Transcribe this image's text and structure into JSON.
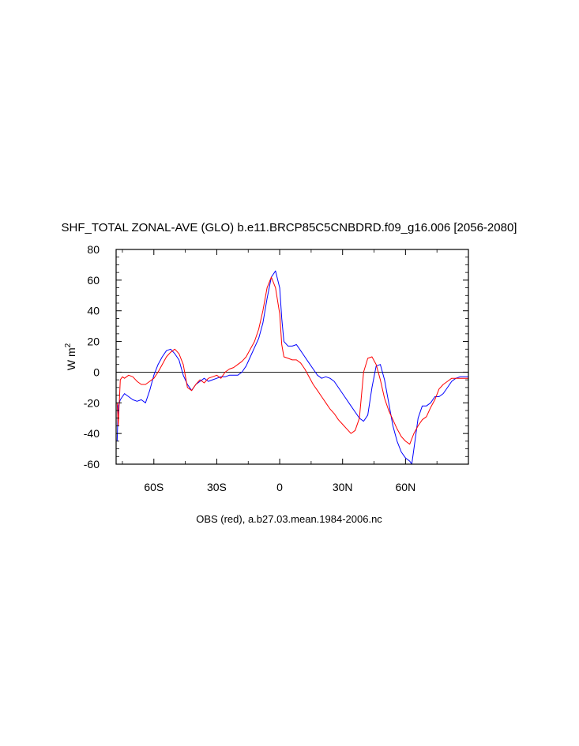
{
  "chart_data": {
    "type": "line",
    "title": "SHF_TOTAL ZONAL-AVE (GLO) b.e11.BRCP85C5CNBDRD.f09_g16.006 [2056-2080]",
    "ylabel": "W m",
    "ylabel_superscript": "2",
    "footer": "OBS (red), a.b27.03.mean.1984-2006.nc",
    "xlim": [
      -78,
      90
    ],
    "ylim": [
      -60,
      80
    ],
    "y_ticks": [
      80,
      60,
      40,
      20,
      0,
      -20,
      -40,
      -60
    ],
    "x_ticks": [
      {
        "value": -60,
        "label": "60S"
      },
      {
        "value": -30,
        "label": "30S"
      },
      {
        "value": 0,
        "label": "0"
      },
      {
        "value": 30,
        "label": "30N"
      },
      {
        "value": 60,
        "label": "60N"
      }
    ],
    "zero_line": true,
    "series": [
      {
        "color": "#0000ff",
        "x": [
          -77.5,
          -77,
          -76,
          -74,
          -72,
          -70,
          -68,
          -66,
          -64,
          -62,
          -60,
          -58,
          -56,
          -54,
          -52,
          -50,
          -48,
          -46,
          -44,
          -42,
          -40,
          -38,
          -36,
          -34,
          -32,
          -30,
          -28,
          -26,
          -24,
          -22,
          -20,
          -18,
          -16,
          -14,
          -12,
          -10,
          -8,
          -6,
          -4,
          -2,
          0,
          1,
          2,
          4,
          6,
          8,
          10,
          12,
          14,
          16,
          18,
          20,
          22,
          24,
          26,
          28,
          30,
          32,
          34,
          36,
          38,
          40,
          42,
          44,
          46,
          48,
          50,
          52,
          54,
          56,
          58,
          60,
          62,
          63,
          64,
          66,
          68,
          70,
          72,
          74,
          76,
          78,
          80,
          82,
          84,
          86,
          88,
          90
        ],
        "y": [
          -45,
          -22,
          -18,
          -14,
          -16,
          -18,
          -19,
          -18,
          -20,
          -12,
          -2,
          5,
          10,
          14,
          15,
          12,
          8,
          -2,
          -8,
          -12,
          -8,
          -6,
          -4,
          -6,
          -5,
          -4,
          -3,
          -3,
          -2,
          -2,
          -2,
          0,
          4,
          10,
          16,
          22,
          32,
          48,
          62,
          66,
          55,
          35,
          20,
          17,
          17,
          18,
          14,
          10,
          6,
          2,
          -2,
          -4,
          -3,
          -4,
          -6,
          -10,
          -14,
          -18,
          -22,
          -26,
          -30,
          -32,
          -28,
          -10,
          4,
          5,
          -5,
          -20,
          -35,
          -45,
          -52,
          -56,
          -58,
          -60,
          -50,
          -30,
          -22,
          -22,
          -20,
          -16,
          -16,
          -14,
          -10,
          -6,
          -4,
          -3,
          -3,
          -3
        ]
      },
      {
        "color": "#ff0000",
        "x": [
          -77.5,
          -77,
          -76,
          -75,
          -74,
          -72,
          -70,
          -68,
          -66,
          -64,
          -62,
          -60,
          -58,
          -56,
          -54,
          -52,
          -50,
          -48,
          -46,
          -44,
          -42,
          -40,
          -38,
          -36,
          -34,
          -32,
          -30,
          -28,
          -26,
          -24,
          -22,
          -20,
          -18,
          -16,
          -14,
          -12,
          -10,
          -8,
          -6,
          -4,
          -2,
          0,
          1,
          2,
          4,
          6,
          8,
          10,
          12,
          14,
          16,
          18,
          20,
          22,
          24,
          26,
          28,
          30,
          32,
          34,
          36,
          38,
          40,
          42,
          44,
          46,
          48,
          50,
          52,
          54,
          56,
          58,
          60,
          62,
          64,
          66,
          68,
          70,
          72,
          74,
          76,
          78,
          80,
          82,
          84,
          86,
          88,
          90
        ],
        "y": [
          -20,
          -35,
          -5,
          -3,
          -4,
          -2,
          -3,
          -6,
          -8,
          -8,
          -6,
          -4,
          0,
          5,
          10,
          13,
          15,
          12,
          5,
          -10,
          -12,
          -8,
          -5,
          -7,
          -4,
          -3,
          -2,
          -4,
          0,
          2,
          3,
          5,
          7,
          10,
          15,
          20,
          28,
          40,
          55,
          62,
          55,
          38,
          18,
          10,
          9,
          8,
          8,
          6,
          2,
          -3,
          -8,
          -12,
          -16,
          -20,
          -24,
          -27,
          -31,
          -34,
          -37,
          -40,
          -38,
          -30,
          0,
          9,
          10,
          5,
          -5,
          -17,
          -25,
          -31,
          -37,
          -42,
          -45,
          -47,
          -40,
          -35,
          -31,
          -29,
          -23,
          -18,
          -11,
          -8,
          -6,
          -4,
          -4,
          -4,
          -4,
          -4
        ]
      }
    ]
  }
}
